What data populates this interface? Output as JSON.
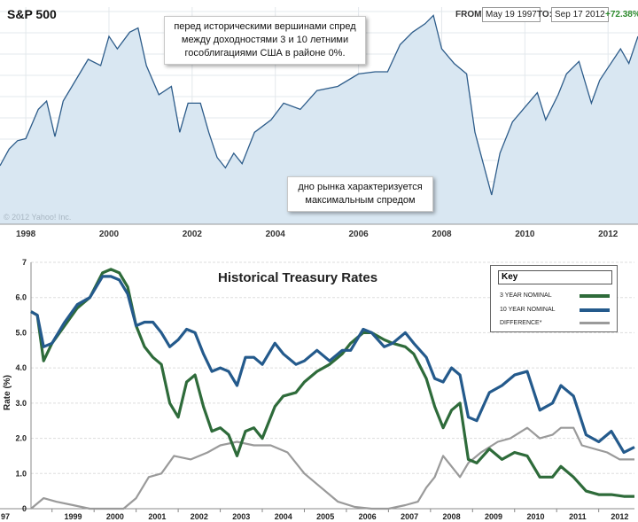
{
  "top": {
    "title": "S&P 500",
    "from_label": "FROM:",
    "from_value": "May 19 1997",
    "to_label": "TO:",
    "to_value": "Sep 17 2012",
    "change": "+72.38%",
    "copyright": "© 2012 Yahoo! Inc.",
    "note_peak": "перед историческими вершинами спред между доходностями 3 и 10 летними гособлигациями США в районе 0%.",
    "note_bottom": "дно рынка характеризуется максимальным спредом",
    "colors": {
      "line": "#2d5c8a",
      "fill": "#d9e7f2",
      "change": "#2e8b2e"
    }
  },
  "bottom": {
    "title": "Historical Treasury Rates",
    "key_title": "Key",
    "ylabel": "Rate (%)",
    "legend": [
      "3 YEAR NOMINAL",
      "10 YEAR NOMINAL",
      "DIFFERENCE*"
    ],
    "colors": {
      "y3": "#2e6b3a",
      "y10": "#245a8c",
      "diff": "#9a9a9a"
    }
  },
  "chart_data": [
    {
      "type": "area",
      "title": "S&P 500",
      "x_ticks": [
        "1998",
        "2000",
        "2002",
        "2004",
        "2006",
        "2008",
        "2010",
        "2012"
      ],
      "xlim": [
        1997.38,
        2012.72
      ],
      "series": [
        {
          "name": "S&P 500",
          "x": [
            1997.38,
            1997.6,
            1997.8,
            1998.0,
            1998.3,
            1998.5,
            1998.7,
            1998.9,
            1999.2,
            1999.5,
            1999.8,
            2000.0,
            2000.2,
            2000.5,
            2000.7,
            2000.9,
            2001.2,
            2001.5,
            2001.7,
            2001.9,
            2002.2,
            2002.4,
            2002.6,
            2002.8,
            2003.0,
            2003.2,
            2003.5,
            2003.9,
            2004.2,
            2004.6,
            2005.0,
            2005.5,
            2006.0,
            2006.4,
            2006.7,
            2007.0,
            2007.3,
            2007.6,
            2007.8,
            2008.0,
            2008.3,
            2008.6,
            2008.8,
            2009.0,
            2009.2,
            2009.4,
            2009.7,
            2010.0,
            2010.3,
            2010.5,
            2010.8,
            2011.0,
            2011.3,
            2011.6,
            2011.8,
            2012.0,
            2012.3,
            2012.5,
            2012.72
          ],
          "values": [
            840,
            920,
            960,
            970,
            1110,
            1150,
            980,
            1150,
            1250,
            1350,
            1320,
            1460,
            1400,
            1480,
            1500,
            1320,
            1180,
            1220,
            1000,
            1140,
            1140,
            1000,
            880,
            830,
            900,
            850,
            1000,
            1060,
            1140,
            1110,
            1200,
            1220,
            1280,
            1290,
            1290,
            1420,
            1480,
            1520,
            1560,
            1400,
            1330,
            1280,
            1000,
            850,
            700,
            900,
            1050,
            1120,
            1190,
            1060,
            1180,
            1280,
            1340,
            1140,
            1250,
            1310,
            1400,
            1330,
            1460
          ]
        }
      ]
    },
    {
      "type": "line",
      "title": "Historical Treasury Rates",
      "ylabel": "Rate (%)",
      "ylim": [
        0,
        7
      ],
      "y_ticks": [
        0,
        1.0,
        2.0,
        3.0,
        4.0,
        5.0,
        6.0,
        7
      ],
      "x_ticks": [
        "97",
        "1999",
        "2000",
        "2001",
        "2002",
        "2003",
        "2004",
        "2005",
        "2006",
        "2007",
        "2008",
        "2009",
        "2010",
        "2011",
        "2012"
      ],
      "xlim": [
        1998.5,
        2012.85
      ],
      "series": [
        {
          "name": "3 YEAR NOMINAL",
          "x": [
            1998.5,
            1998.65,
            1998.8,
            1999.0,
            1999.3,
            1999.6,
            1999.9,
            2000.2,
            2000.4,
            2000.6,
            2000.8,
            2001.0,
            2001.2,
            2001.4,
            2001.6,
            2001.8,
            2002.0,
            2002.2,
            2002.4,
            2002.6,
            2002.8,
            2003.0,
            2003.2,
            2003.4,
            2003.6,
            2003.8,
            2004.0,
            2004.3,
            2004.5,
            2004.8,
            2005.0,
            2005.3,
            2005.6,
            2005.9,
            2006.1,
            2006.4,
            2006.6,
            2006.9,
            2007.1,
            2007.4,
            2007.6,
            2007.9,
            2008.1,
            2008.3,
            2008.5,
            2008.7,
            2008.9,
            2009.1,
            2009.4,
            2009.7,
            2010.0,
            2010.3,
            2010.6,
            2010.9,
            2011.1,
            2011.4,
            2011.7,
            2012.0,
            2012.3,
            2012.6,
            2012.85
          ],
          "values": [
            5.6,
            5.5,
            4.2,
            4.7,
            5.2,
            5.7,
            6.0,
            6.7,
            6.8,
            6.7,
            6.3,
            5.2,
            4.6,
            4.3,
            4.1,
            3.0,
            2.6,
            3.6,
            3.8,
            2.9,
            2.2,
            2.3,
            2.1,
            1.5,
            2.2,
            2.3,
            2.0,
            2.9,
            3.2,
            3.3,
            3.6,
            3.9,
            4.1,
            4.4,
            4.7,
            5.0,
            5.0,
            4.8,
            4.7,
            4.6,
            4.4,
            3.7,
            2.9,
            2.3,
            2.8,
            3.0,
            1.4,
            1.3,
            1.7,
            1.4,
            1.6,
            1.5,
            0.9,
            0.9,
            1.2,
            0.9,
            0.5,
            0.4,
            0.4,
            0.35,
            0.35
          ]
        },
        {
          "name": "10 YEAR NOMINAL",
          "x": [
            1998.5,
            1998.65,
            1998.8,
            1999.0,
            1999.3,
            1999.6,
            1999.9,
            2000.2,
            2000.4,
            2000.6,
            2000.8,
            2001.0,
            2001.2,
            2001.4,
            2001.6,
            2001.8,
            2002.0,
            2002.2,
            2002.4,
            2002.6,
            2002.8,
            2003.0,
            2003.2,
            2003.4,
            2003.6,
            2003.8,
            2004.0,
            2004.3,
            2004.5,
            2004.8,
            2005.0,
            2005.3,
            2005.6,
            2005.9,
            2006.1,
            2006.4,
            2006.6,
            2006.9,
            2007.1,
            2007.4,
            2007.6,
            2007.9,
            2008.1,
            2008.3,
            2008.5,
            2008.7,
            2008.9,
            2009.1,
            2009.4,
            2009.7,
            2010.0,
            2010.3,
            2010.6,
            2010.9,
            2011.1,
            2011.4,
            2011.7,
            2012.0,
            2012.3,
            2012.6,
            2012.85
          ],
          "values": [
            5.6,
            5.5,
            4.6,
            4.7,
            5.3,
            5.8,
            6.0,
            6.6,
            6.6,
            6.5,
            6.1,
            5.2,
            5.3,
            5.3,
            5.0,
            4.6,
            4.8,
            5.1,
            5.0,
            4.4,
            3.9,
            4.0,
            3.9,
            3.5,
            4.3,
            4.3,
            4.1,
            4.7,
            4.4,
            4.1,
            4.2,
            4.5,
            4.2,
            4.5,
            4.5,
            5.1,
            5.0,
            4.6,
            4.7,
            5.0,
            4.7,
            4.3,
            3.7,
            3.6,
            4.0,
            3.8,
            2.6,
            2.5,
            3.3,
            3.5,
            3.8,
            3.9,
            2.8,
            3.0,
            3.5,
            3.2,
            2.1,
            1.9,
            2.2,
            1.6,
            1.75
          ]
        },
        {
          "name": "DIFFERENCE*",
          "x": [
            1998.5,
            1998.8,
            1999.1,
            1999.5,
            1999.9,
            2000.3,
            2000.7,
            2001.0,
            2001.3,
            2001.6,
            2001.9,
            2002.3,
            2002.7,
            2003.0,
            2003.4,
            2003.8,
            2004.2,
            2004.6,
            2005.0,
            2005.4,
            2005.8,
            2006.2,
            2006.6,
            2007.0,
            2007.4,
            2007.7,
            2007.9,
            2008.1,
            2008.3,
            2008.5,
            2008.7,
            2008.9,
            2009.2,
            2009.6,
            2009.9,
            2010.3,
            2010.6,
            2010.9,
            2011.1,
            2011.4,
            2011.6,
            2011.9,
            2012.2,
            2012.5,
            2012.85
          ],
          "values": [
            0.0,
            0.3,
            0.2,
            0.1,
            0.0,
            0.0,
            0.0,
            0.3,
            0.9,
            1.0,
            1.5,
            1.4,
            1.6,
            1.8,
            1.9,
            1.8,
            1.8,
            1.6,
            1.0,
            0.6,
            0.2,
            0.05,
            0.0,
            0.0,
            0.1,
            0.2,
            0.6,
            0.9,
            1.5,
            1.2,
            0.9,
            1.3,
            1.6,
            1.9,
            2.0,
            2.3,
            2.0,
            2.1,
            2.3,
            2.3,
            1.8,
            1.7,
            1.6,
            1.4,
            1.4
          ]
        }
      ]
    }
  ]
}
